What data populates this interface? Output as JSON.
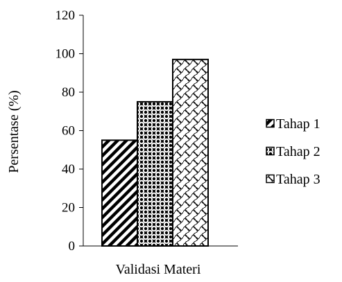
{
  "chart_data": {
    "type": "bar",
    "categories": [
      "Validasi Materi"
    ],
    "series": [
      {
        "name": "Tahap 1",
        "values": [
          55
        ]
      },
      {
        "name": "Tahap 2",
        "values": [
          75
        ]
      },
      {
        "name": "Tahap 3",
        "values": [
          97
        ]
      }
    ],
    "xlabel": "Validasi Materi",
    "ylabel": "Persentase (%)",
    "ylim": [
      0,
      120
    ],
    "yticks": [
      "0",
      "20",
      "40",
      "60",
      "80",
      "100",
      "120"
    ],
    "grid": false,
    "legend_position": "right",
    "series_patterns": [
      "diagonal-stripes",
      "diamond-checker",
      "crosshatch-circles"
    ]
  }
}
